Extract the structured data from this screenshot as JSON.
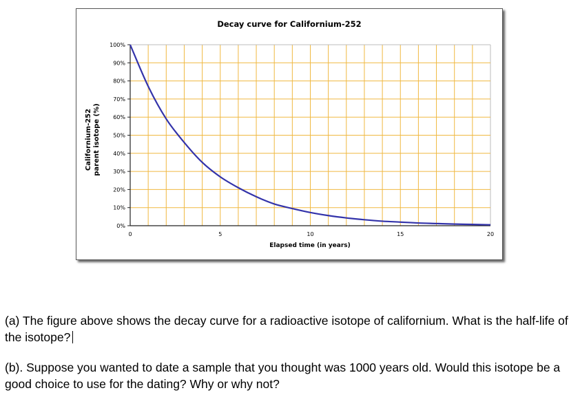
{
  "chart_data": {
    "type": "line",
    "title": "Decay curve for Californium-252",
    "xlabel": "Elapsed time (in years)",
    "ylabel_lines": [
      "Californium-252",
      "parent isotope (%)"
    ],
    "xlim": [
      0,
      20
    ],
    "ylim": [
      0,
      100
    ],
    "x_ticks": [
      "0",
      "5",
      "10",
      "15",
      "20"
    ],
    "y_ticks": [
      "0%",
      "10%",
      "20%",
      "30%",
      "40%",
      "50%",
      "60%",
      "70%",
      "80%",
      "90%",
      "100%"
    ],
    "grid": true,
    "grid_color": "#f0b840",
    "line_color": "#3333aa",
    "x": [
      0,
      1,
      2,
      3,
      4,
      5,
      6,
      7,
      8,
      9,
      10,
      11,
      12,
      13,
      14,
      15,
      16,
      17,
      18,
      19,
      20
    ],
    "values": [
      100,
      77,
      59,
      46,
      35,
      27,
      21,
      16,
      12,
      9.5,
      7.3,
      5.6,
      4.3,
      3.3,
      2.5,
      2.0,
      1.5,
      1.2,
      0.9,
      0.7,
      0.5
    ]
  },
  "questions": {
    "a": "(a) The figure above shows the decay curve for a radioactive isotope of californium.  What is the half-life of the isotope?",
    "b": "(b). Suppose you wanted to date a sample that you thought was 1000 years old.  Would this isotope be a good choice to use for the dating?  Why or why not?"
  }
}
